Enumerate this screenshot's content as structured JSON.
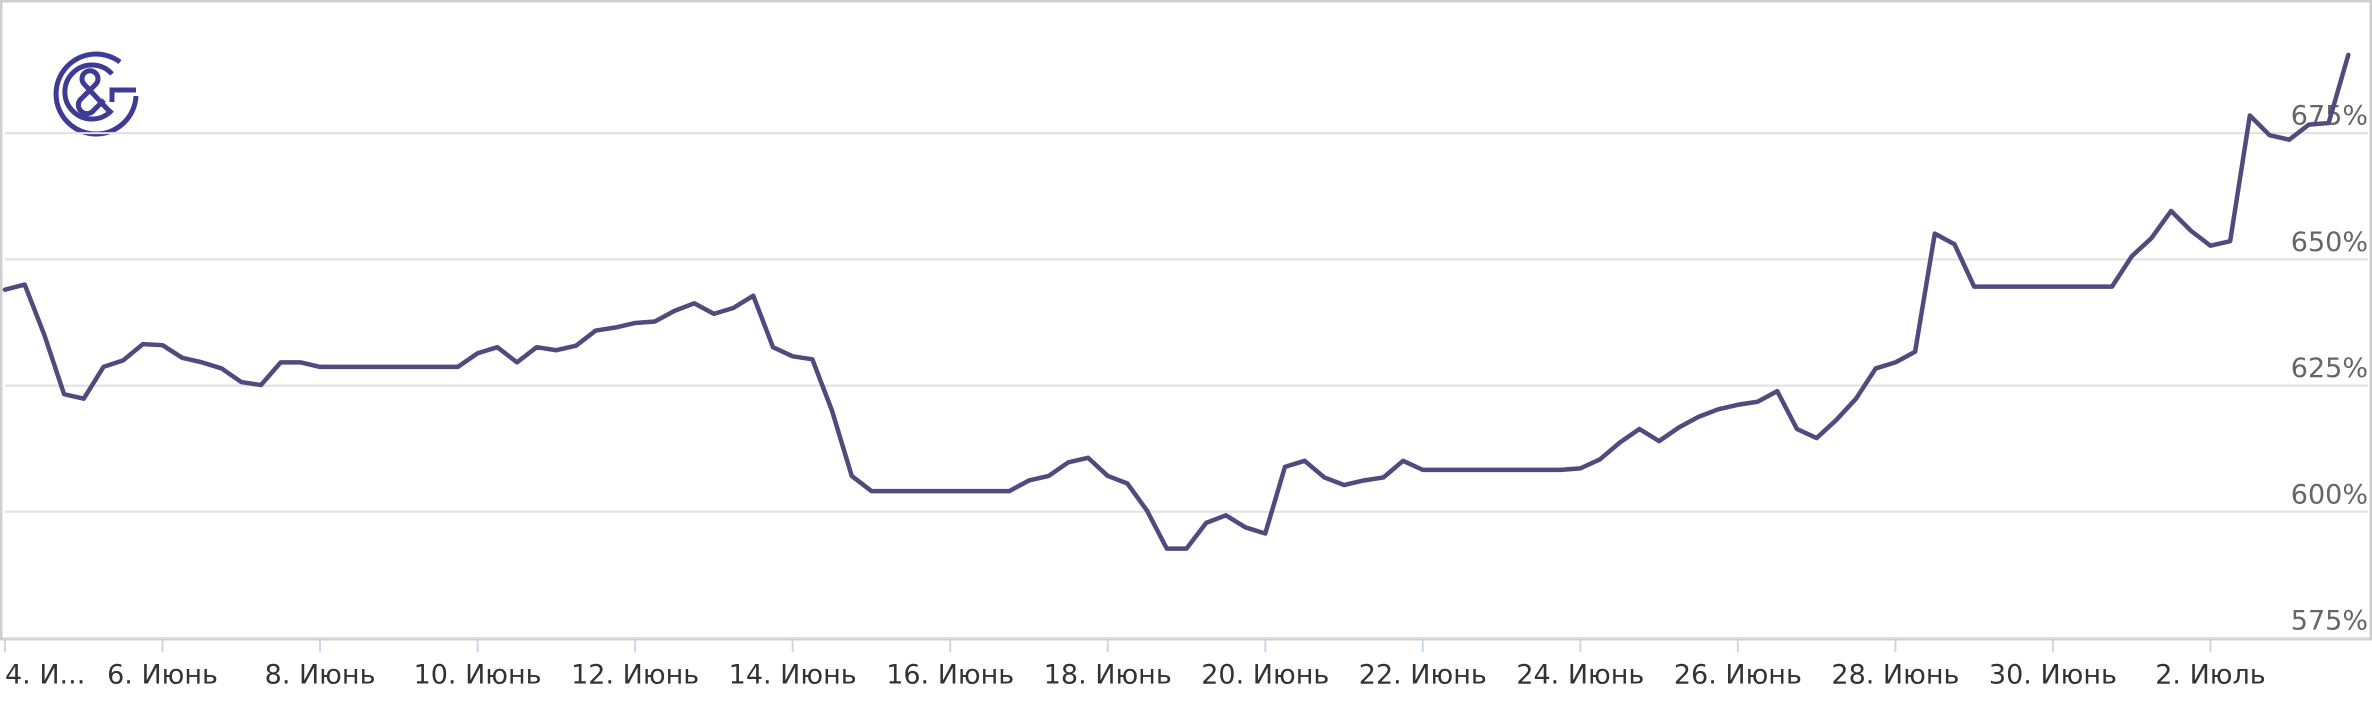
{
  "chart_data": {
    "type": "line",
    "categories": [
      "4. И...",
      null,
      null,
      null,
      null,
      null,
      null,
      null,
      "6. Июнь",
      null,
      null,
      null,
      null,
      null,
      null,
      null,
      "8. Июнь",
      null,
      null,
      null,
      null,
      null,
      null,
      null,
      "10. Июнь",
      null,
      null,
      null,
      null,
      null,
      null,
      null,
      "12. Июнь",
      null,
      null,
      null,
      null,
      null,
      null,
      null,
      "14. Июнь",
      null,
      null,
      null,
      null,
      null,
      null,
      null,
      "16. Июнь",
      null,
      null,
      null,
      null,
      null,
      null,
      null,
      "18. Июнь",
      null,
      null,
      null,
      null,
      null,
      null,
      null,
      "20. Июнь",
      null,
      null,
      null,
      null,
      null,
      null,
      null,
      "22. Июнь",
      null,
      null,
      null,
      null,
      null,
      null,
      null,
      "24. Июнь",
      null,
      null,
      null,
      null,
      null,
      null,
      null,
      "26. Июнь",
      null,
      null,
      null,
      null,
      null,
      null,
      null,
      "28. Июнь",
      null,
      null,
      null,
      null,
      null,
      null,
      null,
      "30. Июнь",
      null,
      null,
      null,
      null,
      null,
      null,
      null,
      "2. Июль",
      null,
      null,
      null,
      null,
      null,
      null,
      null
    ],
    "values": [
      644,
      645,
      635,
      623.3,
      622.4,
      628.7,
      630,
      633.2,
      633,
      630.5,
      629.6,
      628.4,
      625.7,
      625.1,
      629.6,
      629.6,
      628.7,
      628.7,
      628.7,
      628.7,
      628.7,
      628.7,
      628.7,
      628.7,
      631.4,
      632.6,
      629.6,
      632.6,
      632,
      632.9,
      635.9,
      636.5,
      637.4,
      637.7,
      639.8,
      641.3,
      639.2,
      640.4,
      642.8,
      632.6,
      630.8,
      630.2,
      620,
      607.1,
      604.1,
      604.1,
      604.1,
      604.1,
      604.1,
      604.1,
      604.1,
      604.1,
      606.2,
      607.1,
      609.8,
      610.7,
      607.1,
      605.6,
      600.2,
      592.7,
      592.7,
      597.8,
      599.3,
      596.9,
      595.7,
      608.9,
      610.1,
      606.8,
      605.3,
      606.2,
      606.8,
      610.1,
      608.3,
      608.3,
      608.3,
      608.3,
      608.3,
      608.3,
      608.3,
      608.3,
      608.6,
      610.4,
      613.7,
      616.4,
      614,
      616.7,
      618.8,
      620.3,
      621.2,
      621.8,
      623.9,
      616.4,
      614.6,
      618.2,
      622.4,
      628.4,
      629.6,
      631.7,
      655.1,
      653,
      644.6,
      644.6,
      644.6,
      644.6,
      644.6,
      644.6,
      644.6,
      644.6,
      650.6,
      654.2,
      659.6,
      655.7,
      652.7,
      653.6,
      678.5,
      674.6,
      673.7,
      676.7,
      677,
      690.5
    ],
    "color": "#4f4b7e",
    "ylim": [
      575,
      699
    ],
    "yticks": [
      {
        "value": 575,
        "label": "575%"
      },
      {
        "value": 600,
        "label": "600%"
      },
      {
        "value": 625,
        "label": "625%"
      },
      {
        "value": 650,
        "label": "650%"
      },
      {
        "value": 675,
        "label": "675%"
      }
    ],
    "grid": true
  }
}
